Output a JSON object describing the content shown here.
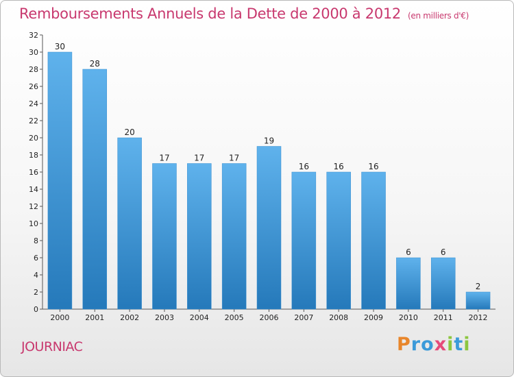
{
  "title": "Remboursements Annuels de la Dette de 2000 à 2012",
  "unit": "(en milliers d'€)",
  "commune": "JOURNIAC",
  "logo": {
    "text": "Proxiti",
    "letters": [
      {
        "char": "P",
        "color": "#e8862b"
      },
      {
        "char": "r",
        "color": "#3b9ad9"
      },
      {
        "char": "o",
        "color": "#3b9ad9"
      },
      {
        "char": "x",
        "color": "#e54a7a"
      },
      {
        "char": "i",
        "color": "#8cc63f"
      },
      {
        "char": "t",
        "color": "#3b9ad9"
      },
      {
        "char": "i",
        "color": "#8cc63f"
      }
    ]
  },
  "colors": {
    "accent": "#c8386e",
    "bar_top": "#5fb2ec",
    "bar_bottom": "#2579ba"
  },
  "chart_data": {
    "type": "bar",
    "categories": [
      "2000",
      "2001",
      "2002",
      "2003",
      "2004",
      "2005",
      "2006",
      "2007",
      "2008",
      "2009",
      "2010",
      "2011",
      "2012"
    ],
    "values": [
      30,
      28,
      20,
      17,
      17,
      17,
      19,
      16,
      16,
      16,
      6,
      6,
      2
    ],
    "ylim": [
      0,
      32
    ],
    "yticks": [
      0,
      2,
      4,
      6,
      8,
      10,
      12,
      14,
      16,
      18,
      20,
      22,
      24,
      26,
      28,
      30,
      32
    ],
    "grid": false,
    "legend": "none"
  }
}
